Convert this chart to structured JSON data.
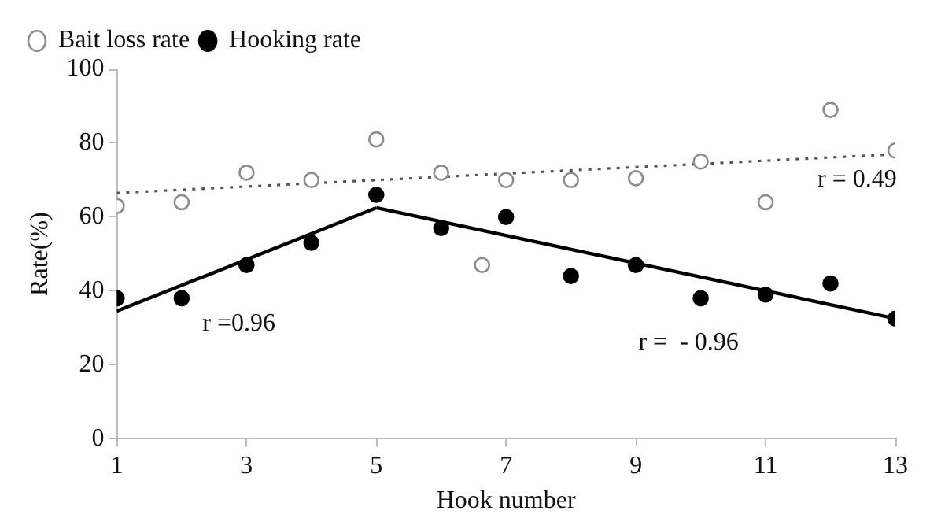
{
  "chart_data": {
    "type": "scatter",
    "xlabel": "Hook number",
    "ylabel": "Rate(%)",
    "xlim": [
      1,
      13
    ],
    "xticks": [
      1,
      3,
      5,
      7,
      9,
      11,
      13
    ],
    "ylim": [
      0,
      100
    ],
    "yticks": [
      0,
      20,
      40,
      60,
      80,
      100
    ],
    "grid": false,
    "legend": "top left",
    "marker": "circle",
    "series": [
      {
        "name": "Bait loss rate",
        "color": "#8c8c8c",
        "x": [
          1,
          2,
          3,
          4,
          5,
          6,
          6.63,
          7,
          8,
          9,
          10,
          11,
          12,
          13
        ],
        "values": [
          63,
          64,
          72,
          70,
          81,
          72,
          47,
          70,
          70,
          70.5,
          75,
          64,
          89,
          78
        ]
      },
      {
        "name": "Hooking rate",
        "color": "#000000",
        "x": [
          1,
          2,
          3,
          4,
          5,
          6,
          7,
          8,
          9,
          10,
          11,
          12,
          13
        ],
        "values": [
          38,
          38,
          47,
          53,
          66,
          57,
          60,
          44,
          47,
          38,
          39,
          42,
          32.5
        ]
      },
      {
        "type": "line",
        "color": "#000000",
        "x": [
          1,
          5
        ],
        "values": [
          34.5,
          62.5
        ],
        "marker": "none",
        "line_style": "solid"
      },
      {
        "type": "line",
        "color": "#000000",
        "x": [
          5,
          13
        ],
        "values": [
          62.5,
          32.5
        ],
        "marker": "none",
        "line_style": "solid"
      },
      {
        "type": "line",
        "color": "#555555",
        "x": [
          1,
          13
        ],
        "values": [
          66.5,
          77
        ],
        "marker": "none",
        "line_style": "dotted"
      }
    ],
    "annotations": [
      "r =0.96",
      "r =  - 0.96",
      "r = 0.49"
    ]
  }
}
